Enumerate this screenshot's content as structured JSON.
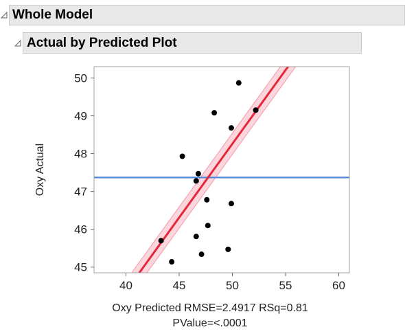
{
  "outline": {
    "section_title": "Whole Model",
    "subsection_title": "Actual by Predicted Plot"
  },
  "colors": {
    "fit_line": "#e2283a",
    "confidence_band": "#fcd6dc",
    "confidence_band_edge": "#f19aa8",
    "mean_line": "#5b8ad8",
    "points": "#000000",
    "header_bg": "#e8e8e8"
  },
  "chart_data": {
    "type": "scatter",
    "title": "",
    "xlabel": "Oxy Predicted RMSE=2.4917 RSq=0.81",
    "xlabel_line2": "PValue=<.0001",
    "ylabel": "Oxy Actual",
    "xlim": [
      37,
      61
    ],
    "ylim": [
      44.85,
      50.3
    ],
    "x_ticks": [
      40,
      45,
      50,
      55,
      60
    ],
    "y_ticks": [
      45,
      46,
      47,
      48,
      49,
      50
    ],
    "grid": false,
    "legend": "none",
    "points": [
      {
        "x": 50.6,
        "y": 49.87
      },
      {
        "x": 52.2,
        "y": 49.15
      },
      {
        "x": 48.3,
        "y": 49.08
      },
      {
        "x": 49.9,
        "y": 48.68
      },
      {
        "x": 45.3,
        "y": 47.93
      },
      {
        "x": 46.8,
        "y": 47.47
      },
      {
        "x": 46.6,
        "y": 47.28
      },
      {
        "x": 47.6,
        "y": 46.78
      },
      {
        "x": 49.9,
        "y": 46.68
      },
      {
        "x": 47.7,
        "y": 46.1
      },
      {
        "x": 46.6,
        "y": 45.81
      },
      {
        "x": 43.3,
        "y": 45.7
      },
      {
        "x": 49.6,
        "y": 45.47
      },
      {
        "x": 47.1,
        "y": 45.34
      },
      {
        "x": 44.3,
        "y": 45.14
      }
    ],
    "fit_line": {
      "slope": 0.39,
      "intercept": 28.76
    },
    "confidence_band_halfwidth": 0.28,
    "mean_y": 47.37
  }
}
